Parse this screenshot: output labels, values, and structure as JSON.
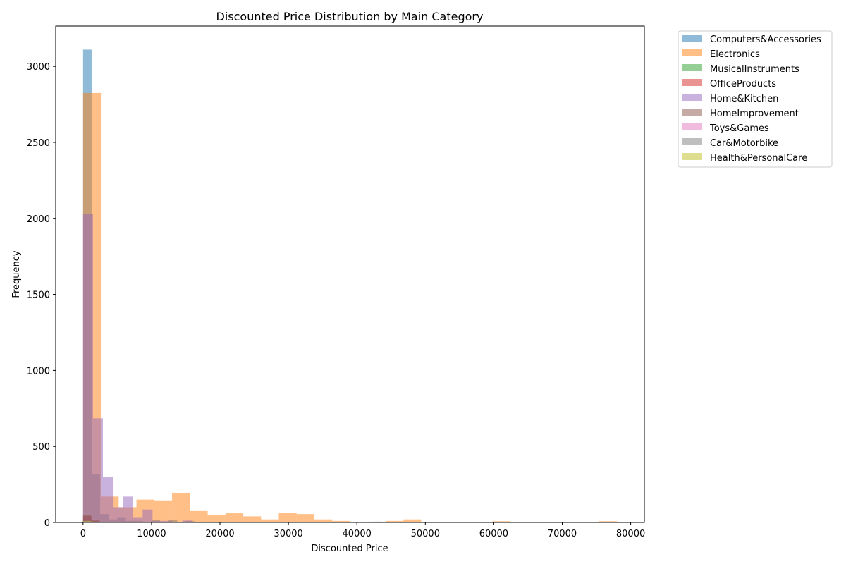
{
  "chart_data": {
    "type": "histogram",
    "title": "Discounted Price Distribution by Main Category",
    "xlabel": "Discounted Price",
    "ylabel": "Frequency",
    "xlim": [
      -4000,
      82000
    ],
    "ylim": [
      0,
      3265
    ],
    "x_ticks": [
      0,
      10000,
      20000,
      30000,
      40000,
      50000,
      60000,
      70000,
      80000
    ],
    "y_ticks": [
      0,
      500,
      1000,
      1500,
      2000,
      2500,
      3000
    ],
    "legend_position": "outside right",
    "bar_opacity": 0.5,
    "series": [
      {
        "name": "Computers&Accessories",
        "color": "#1f77b4",
        "bins": [
          {
            "x0": 0,
            "x1": 1250,
            "count": 3110
          },
          {
            "x0": 1250,
            "x1": 2500,
            "count": 315
          },
          {
            "x0": 2500,
            "x1": 3750,
            "count": 55
          },
          {
            "x0": 3750,
            "x1": 5000,
            "count": 20
          },
          {
            "x0": 5000,
            "x1": 6250,
            "count": 30
          },
          {
            "x0": 6250,
            "x1": 7500,
            "count": 10
          },
          {
            "x0": 7500,
            "x1": 8750,
            "count": 10
          },
          {
            "x0": 8750,
            "x1": 10000,
            "count": 5
          },
          {
            "x0": 10000,
            "x1": 11250,
            "count": 15
          },
          {
            "x0": 12500,
            "x1": 13750,
            "count": 15
          },
          {
            "x0": 15000,
            "x1": 16250,
            "count": 10
          },
          {
            "x0": 17500,
            "x1": 18750,
            "count": 5
          },
          {
            "x0": 36250,
            "x1": 37500,
            "count": 5
          },
          {
            "x0": 42500,
            "x1": 43750,
            "count": 5
          }
        ]
      },
      {
        "name": "Electronics",
        "color": "#ff7f0e",
        "bins": [
          {
            "x0": 0,
            "x1": 2600,
            "count": 2825
          },
          {
            "x0": 2600,
            "x1": 5200,
            "count": 170
          },
          {
            "x0": 5200,
            "x1": 7800,
            "count": 100
          },
          {
            "x0": 7800,
            "x1": 10400,
            "count": 150
          },
          {
            "x0": 10400,
            "x1": 13000,
            "count": 145
          },
          {
            "x0": 13000,
            "x1": 15600,
            "count": 195
          },
          {
            "x0": 15600,
            "x1": 18200,
            "count": 75
          },
          {
            "x0": 18200,
            "x1": 20800,
            "count": 50
          },
          {
            "x0": 20800,
            "x1": 23400,
            "count": 60
          },
          {
            "x0": 23400,
            "x1": 26000,
            "count": 40
          },
          {
            "x0": 26000,
            "x1": 28600,
            "count": 20
          },
          {
            "x0": 28600,
            "x1": 31200,
            "count": 65
          },
          {
            "x0": 31200,
            "x1": 33800,
            "count": 55
          },
          {
            "x0": 33800,
            "x1": 36400,
            "count": 20
          },
          {
            "x0": 36400,
            "x1": 39000,
            "count": 10
          },
          {
            "x0": 39000,
            "x1": 41600,
            "count": 2
          },
          {
            "x0": 41600,
            "x1": 44200,
            "count": 5
          },
          {
            "x0": 44200,
            "x1": 46800,
            "count": 10
          },
          {
            "x0": 46800,
            "x1": 49400,
            "count": 20
          },
          {
            "x0": 54600,
            "x1": 57200,
            "count": 3
          },
          {
            "x0": 59800,
            "x1": 62400,
            "count": 8
          },
          {
            "x0": 75400,
            "x1": 78000,
            "count": 8
          }
        ]
      },
      {
        "name": "MusicalInstruments",
        "color": "#2ca02c",
        "bins": [
          {
            "x0": 0,
            "x1": 1250,
            "count": 20
          },
          {
            "x0": 1250,
            "x1": 2500,
            "count": 5
          }
        ]
      },
      {
        "name": "OfficeProducts",
        "color": "#d62728",
        "bins": [
          {
            "x0": 0,
            "x1": 1250,
            "count": 40
          },
          {
            "x0": 1250,
            "x1": 2500,
            "count": 10
          }
        ]
      },
      {
        "name": "Home&Kitchen",
        "color": "#9467bd",
        "bins": [
          {
            "x0": 0,
            "x1": 1450,
            "count": 2030
          },
          {
            "x0": 1450,
            "x1": 2900,
            "count": 685
          },
          {
            "x0": 2900,
            "x1": 4350,
            "count": 300
          },
          {
            "x0": 4350,
            "x1": 5800,
            "count": 100
          },
          {
            "x0": 5800,
            "x1": 7250,
            "count": 170
          },
          {
            "x0": 7250,
            "x1": 8700,
            "count": 30
          },
          {
            "x0": 8700,
            "x1": 10150,
            "count": 85
          },
          {
            "x0": 10150,
            "x1": 11600,
            "count": 10
          },
          {
            "x0": 11600,
            "x1": 13050,
            "count": 10
          },
          {
            "x0": 14500,
            "x1": 15950,
            "count": 12
          },
          {
            "x0": 18850,
            "x1": 20300,
            "count": 5
          },
          {
            "x0": 42050,
            "x1": 43500,
            "count": 5
          }
        ]
      },
      {
        "name": "HomeImprovement",
        "color": "#8c564b",
        "bins": [
          {
            "x0": 0,
            "x1": 1200,
            "count": 50
          },
          {
            "x0": 1200,
            "x1": 2400,
            "count": 15
          }
        ]
      },
      {
        "name": "Toys&Games",
        "color": "#e377c2",
        "bins": [
          {
            "x0": 0,
            "x1": 1200,
            "count": 10
          }
        ]
      },
      {
        "name": "Car&Motorbike",
        "color": "#7f7f7f",
        "bins": [
          {
            "x0": 0,
            "x1": 1200,
            "count": 10
          }
        ]
      },
      {
        "name": "Health&PersonalCare",
        "color": "#bcbd22",
        "bins": [
          {
            "x0": 0,
            "x1": 1200,
            "count": 10
          }
        ]
      }
    ]
  }
}
